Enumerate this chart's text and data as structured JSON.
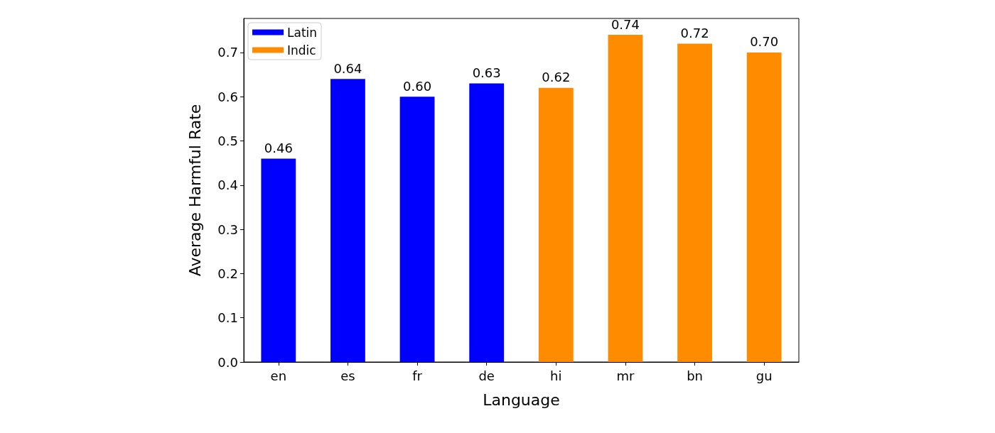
{
  "chart_data": {
    "type": "bar",
    "xlabel": "Language",
    "ylabel": "Average Harmful Rate",
    "categories": [
      "en",
      "es",
      "fr",
      "de",
      "hi",
      "mr",
      "bn",
      "gu"
    ],
    "series": [
      {
        "name": "Latin",
        "color": "#0000ff",
        "values": [
          0.46,
          0.64,
          0.6,
          0.63,
          null,
          null,
          null,
          null
        ],
        "value_labels": [
          "0.46",
          "0.64",
          "0.60",
          "0.63",
          null,
          null,
          null,
          null
        ]
      },
      {
        "name": "Indic",
        "color": "#ff8c00",
        "values": [
          null,
          null,
          null,
          null,
          0.62,
          0.74,
          0.72,
          0.7
        ],
        "value_labels": [
          null,
          null,
          null,
          null,
          "0.62",
          "0.74",
          "0.72",
          "0.70"
        ]
      }
    ],
    "ylim": [
      0,
      0.777
    ],
    "yticks": [
      {
        "value": 0,
        "label": "0.0"
      },
      {
        "value": 0.1,
        "label": "0.1"
      },
      {
        "value": 0.2,
        "label": "0.2"
      },
      {
        "value": 0.3,
        "label": "0.3"
      },
      {
        "value": 0.4,
        "label": "0.4"
      },
      {
        "value": 0.5,
        "label": "0.5"
      },
      {
        "value": 0.6,
        "label": "0.6"
      },
      {
        "value": 0.7,
        "label": "0.7"
      }
    ],
    "grid": false,
    "legend": "top left"
  }
}
